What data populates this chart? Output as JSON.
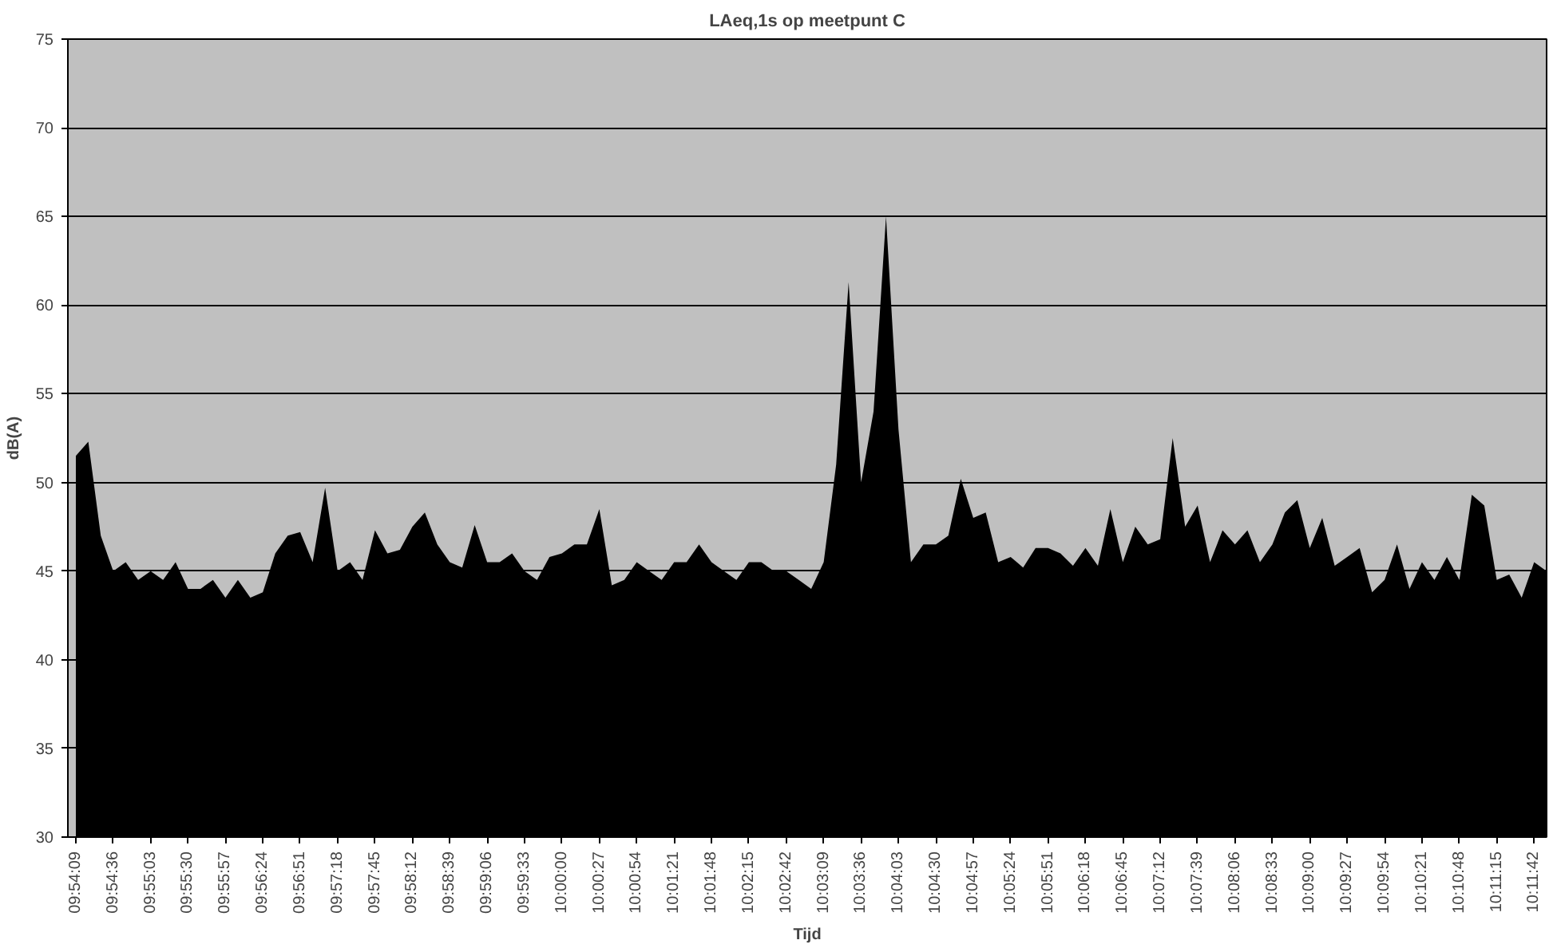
{
  "chart_data": {
    "type": "area",
    "title": "LAeq,1s op meetpunt C",
    "xlabel": "Tijd",
    "ylabel": "dB(A)",
    "x": [
      9.9025,
      9.905,
      9.9075,
      9.91,
      9.9125,
      9.915,
      9.9175,
      9.92,
      9.9225,
      9.925,
      9.9275,
      9.93,
      9.9325,
      9.935,
      9.9375,
      9.94,
      9.9425,
      9.945,
      9.9475,
      9.95,
      9.9525,
      9.955,
      9.9575,
      9.96,
      9.9625,
      9.965,
      9.9675,
      9.97,
      9.9725,
      9.975,
      9.9775,
      9.98,
      9.9825,
      9.985,
      9.9875,
      9.99,
      9.9925,
      9.995,
      9.9975,
      10.0,
      10.0025,
      10.005,
      10.0075,
      10.01,
      10.0125,
      10.015,
      10.0175,
      10.02,
      10.0225,
      10.025,
      10.0275,
      10.03,
      10.0325,
      10.035,
      10.0375,
      10.04,
      10.0425,
      10.045,
      10.0475,
      10.05,
      10.0525,
      10.055,
      10.0575,
      10.06,
      10.0625,
      10.065,
      10.0675,
      10.07,
      10.0725,
      10.075,
      10.0775,
      10.08,
      10.0825,
      10.085,
      10.0875,
      10.09,
      10.0925,
      10.095,
      10.0975,
      10.1,
      10.1025,
      10.105,
      10.1075,
      10.11,
      10.1125,
      10.115,
      10.1175,
      10.12,
      10.1225,
      10.125,
      10.1275,
      10.13,
      10.1325,
      10.135,
      10.1375,
      10.14,
      10.1425,
      10.145,
      10.1475,
      10.15,
      10.1525,
      10.155,
      10.1575,
      10.16,
      10.1625,
      10.165,
      10.1675,
      10.17,
      10.1725,
      10.175,
      10.1775,
      10.18,
      10.1825,
      10.185,
      10.1875,
      10.19,
      10.1925,
      10.195,
      10.1975
    ],
    "series": [
      {
        "color": "#000000",
        "values": [
          51.5,
          52.3,
          47,
          45,
          45.5,
          44.5,
          45,
          44.5,
          45.5,
          44,
          44,
          44.5,
          43.5,
          44.5,
          43.5,
          43.8,
          46,
          47,
          47.2,
          45.5,
          49.7,
          45,
          45.5,
          44.5,
          47.3,
          46,
          46.2,
          47.5,
          48.3,
          46.5,
          45.5,
          45.2,
          47.6,
          45.5,
          45.5,
          46,
          45,
          44.5,
          45.8,
          46,
          46.5,
          46.5,
          48.5,
          44.2,
          44.5,
          45.5,
          45,
          44.5,
          45.5,
          45.5,
          46.5,
          45.5,
          45,
          44.5,
          45.5,
          45.5,
          45,
          45,
          44.5,
          44,
          45.5,
          51,
          61.3,
          50,
          54,
          65,
          53,
          45.5,
          46.5,
          46.5,
          47,
          50.2,
          48,
          48.3,
          45.5,
          45.8,
          45.2,
          46.3,
          46.3,
          46,
          45.3,
          46.3,
          45.3,
          48.5,
          45.5,
          47.5,
          46.5,
          46.8,
          52.5,
          47.5,
          48.7,
          45.5,
          47.3,
          46.5,
          47.3,
          45.5,
          46.5,
          48.3,
          49,
          46.3,
          48,
          45.3,
          45.8,
          46.3,
          43.8,
          44.5,
          46.5,
          44,
          45.5,
          44.5,
          45.8,
          44.5,
          49.3,
          48.7,
          44.5,
          44.8,
          43.5,
          45.5,
          45
        ]
      }
    ],
    "xlim": [
      9.9009,
      10.1975
    ],
    "ylim": [
      30,
      75
    ],
    "yticks": [
      30,
      35,
      40,
      45,
      50,
      55,
      60,
      65,
      70,
      75
    ],
    "xticks": [
      {
        "value": 9.9025,
        "label": "09:54:09"
      },
      {
        "value": 9.91,
        "label": "09:54:36"
      },
      {
        "value": 9.9175,
        "label": "09:55:03"
      },
      {
        "value": 9.925,
        "label": "09:55:30"
      },
      {
        "value": 9.9325,
        "label": "09:55:57"
      },
      {
        "value": 9.94,
        "label": "09:56:24"
      },
      {
        "value": 9.9475,
        "label": "09:56:51"
      },
      {
        "value": 9.955,
        "label": "09:57:18"
      },
      {
        "value": 9.9625,
        "label": "09:57:45"
      },
      {
        "value": 9.97,
        "label": "09:58:12"
      },
      {
        "value": 9.9775,
        "label": "09:58:39"
      },
      {
        "value": 9.985,
        "label": "09:59:06"
      },
      {
        "value": 9.9925,
        "label": "09:59:33"
      },
      {
        "value": 10.0,
        "label": "10:00:00"
      },
      {
        "value": 10.0075,
        "label": "10:00:27"
      },
      {
        "value": 10.015,
        "label": "10:00:54"
      },
      {
        "value": 10.0225,
        "label": "10:01:21"
      },
      {
        "value": 10.03,
        "label": "10:01:48"
      },
      {
        "value": 10.0375,
        "label": "10:02:15"
      },
      {
        "value": 10.045,
        "label": "10:02:42"
      },
      {
        "value": 10.0525,
        "label": "10:03:09"
      },
      {
        "value": 10.06,
        "label": "10:03:36"
      },
      {
        "value": 10.0675,
        "label": "10:04:03"
      },
      {
        "value": 10.075,
        "label": "10:04:30"
      },
      {
        "value": 10.0825,
        "label": "10:04:57"
      },
      {
        "value": 10.09,
        "label": "10:05:24"
      },
      {
        "value": 10.0975,
        "label": "10:05:51"
      },
      {
        "value": 10.105,
        "label": "10:06:18"
      },
      {
        "value": 10.1125,
        "label": "10:06:45"
      },
      {
        "value": 10.12,
        "label": "10:07:12"
      },
      {
        "value": 10.1275,
        "label": "10:07:39"
      },
      {
        "value": 10.135,
        "label": "10:08:06"
      },
      {
        "value": 10.1425,
        "label": "10:08:33"
      },
      {
        "value": 10.15,
        "label": "10:09:00"
      },
      {
        "value": 10.1575,
        "label": "10:09:27"
      },
      {
        "value": 10.165,
        "label": "10:09:54"
      },
      {
        "value": 10.1725,
        "label": "10:10:21"
      },
      {
        "value": 10.18,
        "label": "10:10:48"
      },
      {
        "value": 10.1875,
        "label": "10:11:15"
      },
      {
        "value": 10.195,
        "label": "10:11:42"
      }
    ],
    "grid": "y"
  }
}
